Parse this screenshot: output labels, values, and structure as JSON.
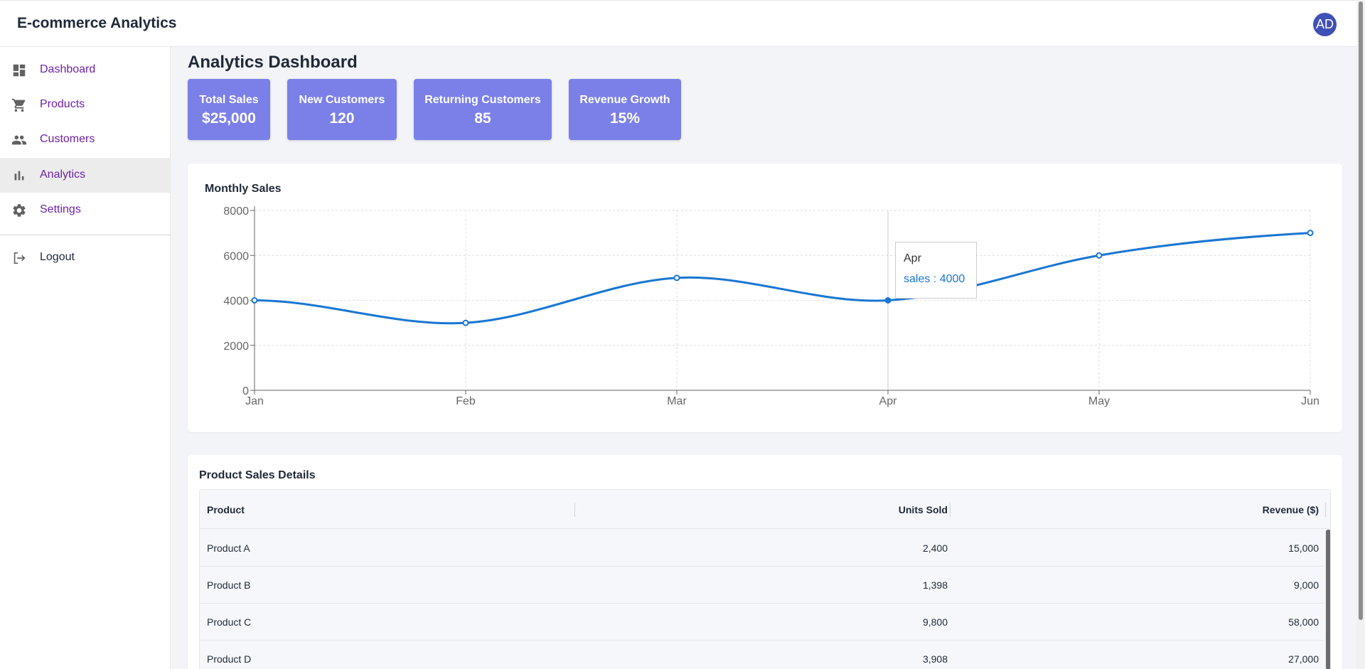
{
  "app": {
    "title": "E-commerce Analytics",
    "avatar_initials": "AD"
  },
  "sidebar": {
    "items": [
      {
        "label": "Dashboard",
        "icon": "dashboard-icon",
        "active": false
      },
      {
        "label": "Products",
        "icon": "cart-icon",
        "active": false
      },
      {
        "label": "Customers",
        "icon": "people-icon",
        "active": false
      },
      {
        "label": "Analytics",
        "icon": "bar-chart-icon",
        "active": true
      },
      {
        "label": "Settings",
        "icon": "gear-icon",
        "active": false
      }
    ],
    "logout": {
      "label": "Logout",
      "icon": "logout-icon"
    }
  },
  "main": {
    "title": "Analytics Dashboard",
    "stats": [
      {
        "label": "Total Sales",
        "value": "$25,000"
      },
      {
        "label": "New Customers",
        "value": "120"
      },
      {
        "label": "Returning Customers",
        "value": "85"
      },
      {
        "label": "Revenue Growth",
        "value": "15%"
      }
    ],
    "chart_title": "Monthly Sales",
    "tooltip": {
      "label": "Apr",
      "value_text": "sales : 4000"
    },
    "table": {
      "title": "Product Sales Details",
      "columns": [
        "Product",
        "Units Sold",
        "Revenue ($)"
      ],
      "rows": [
        [
          "Product A",
          "2,400",
          "15,000"
        ],
        [
          "Product B",
          "1,398",
          "9,000"
        ],
        [
          "Product C",
          "9,800",
          "58,000"
        ],
        [
          "Product D",
          "3,908",
          "27,000"
        ]
      ]
    }
  },
  "colors": {
    "accent": "#7b80e8",
    "line": "#1976d2",
    "nav_text": "#6b21a8",
    "avatar": "#3f51b5"
  },
  "chart_data": {
    "type": "line",
    "categories": [
      "Jan",
      "Feb",
      "Mar",
      "Apr",
      "May",
      "Jun"
    ],
    "series": [
      {
        "name": "sales",
        "values": [
          4000,
          3000,
          5000,
          4000,
          6000,
          7000
        ]
      }
    ],
    "ylim": [
      0,
      8000
    ],
    "yticks": [
      0,
      2000,
      4000,
      6000,
      8000
    ],
    "grid": true,
    "active_category": "Apr"
  }
}
